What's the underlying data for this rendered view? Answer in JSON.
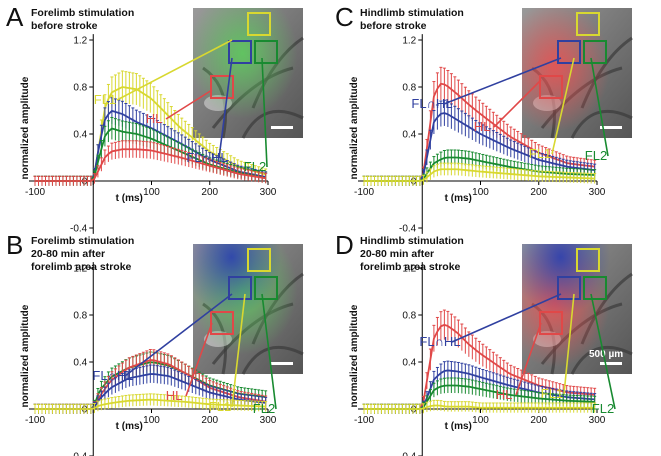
{
  "colors": {
    "FL1": "#d8d830",
    "HL": "#e04848",
    "FL_HL": "#3040a0",
    "FL2": "#188a30"
  },
  "axes": {
    "ylabel": "normalized amplitude",
    "xlabel": "t (ms)",
    "xticks": [
      "-100",
      "0",
      "100",
      "200",
      "300"
    ],
    "yticks": [
      "-0.4",
      "0",
      "0.4",
      "0.8",
      "1.2"
    ]
  },
  "scale_bar_label": "500 µm",
  "panels": [
    {
      "letter": "A",
      "title": [
        "Forelimb stimulation",
        "before stroke"
      ],
      "image_tint": "green",
      "labels": {
        "FL1": "FL1",
        "HL": "HL",
        "FL_HL": "FL∩HL",
        "FL2": "FL2"
      }
    },
    {
      "letter": "C",
      "title": [
        "Hindlimb stimulation",
        "before stroke"
      ],
      "image_tint": "red",
      "labels": {
        "FL1": "FL1",
        "HL": "HL",
        "FL_HL": "FL∩HL",
        "FL2": "FL2"
      }
    },
    {
      "letter": "B",
      "title": [
        "Forelimb stimulation",
        "20-80 min after",
        "forelimb area stroke"
      ],
      "image_tint": "green-blue",
      "labels": {
        "FL1": "FL1",
        "HL": "HL",
        "FL_HL": "FL∩HL",
        "FL2": "FL2"
      }
    },
    {
      "letter": "D",
      "title": [
        "Hindlimb stimulation",
        "20-80 min after",
        "forelimb area stroke"
      ],
      "image_tint": "red-blue",
      "labels": {
        "FL1": "FL1",
        "HL": "HL",
        "FL_HL": "FL∩HL",
        "FL2": "FL2"
      }
    }
  ],
  "chart_data": [
    {
      "panel": "A",
      "type": "line",
      "xlabel": "t (ms)",
      "ylabel": "normalized amplitude",
      "xlim": [
        -100,
        300
      ],
      "ylim": [
        -0.4,
        1.2
      ],
      "series": [
        {
          "name": "FL1",
          "x": [
            -100,
            -50,
            0,
            10,
            20,
            30,
            50,
            75,
            100,
            150,
            200,
            250,
            300
          ],
          "y": [
            0,
            0,
            0,
            0.3,
            0.62,
            0.75,
            0.8,
            0.78,
            0.7,
            0.45,
            0.25,
            0.12,
            0.05
          ]
        },
        {
          "name": "FL∩HL",
          "x": [
            -100,
            -50,
            0,
            10,
            20,
            30,
            50,
            75,
            100,
            150,
            200,
            250,
            300
          ],
          "y": [
            0,
            0,
            0,
            0.3,
            0.52,
            0.6,
            0.57,
            0.5,
            0.45,
            0.32,
            0.18,
            0.08,
            0.03
          ]
        },
        {
          "name": "FL2",
          "x": [
            -100,
            -50,
            0,
            10,
            20,
            30,
            50,
            75,
            100,
            150,
            200,
            250,
            300
          ],
          "y": [
            0,
            0,
            0,
            0.2,
            0.38,
            0.45,
            0.42,
            0.4,
            0.36,
            0.25,
            0.14,
            0.07,
            0.02
          ]
        },
        {
          "name": "HL",
          "x": [
            -100,
            -50,
            0,
            10,
            20,
            30,
            50,
            75,
            100,
            150,
            200,
            250,
            300
          ],
          "y": [
            0,
            0,
            0,
            0.1,
            0.2,
            0.25,
            0.27,
            0.27,
            0.26,
            0.2,
            0.13,
            0.06,
            0.02
          ]
        }
      ]
    },
    {
      "panel": "C",
      "type": "line",
      "xlabel": "t (ms)",
      "ylabel": "normalized amplitude",
      "xlim": [
        -100,
        300
      ],
      "ylim": [
        -0.4,
        1.2
      ],
      "series": [
        {
          "name": "HL",
          "x": [
            -100,
            -50,
            0,
            10,
            20,
            30,
            40,
            60,
            80,
            100,
            150,
            200,
            250,
            300
          ],
          "y": [
            0,
            0,
            0,
            0.35,
            0.72,
            0.83,
            0.82,
            0.74,
            0.65,
            0.57,
            0.38,
            0.24,
            0.15,
            0.12
          ]
        },
        {
          "name": "FL∩HL",
          "x": [
            -100,
            -50,
            0,
            10,
            20,
            30,
            40,
            60,
            80,
            100,
            150,
            200,
            250,
            300
          ],
          "y": [
            0,
            0,
            0,
            0.25,
            0.5,
            0.57,
            0.58,
            0.52,
            0.46,
            0.4,
            0.28,
            0.18,
            0.12,
            0.09
          ]
        },
        {
          "name": "FL2",
          "x": [
            -100,
            -50,
            0,
            10,
            20,
            30,
            40,
            60,
            80,
            100,
            150,
            200,
            250,
            300
          ],
          "y": [
            0,
            0,
            0,
            0.08,
            0.15,
            0.18,
            0.2,
            0.2,
            0.19,
            0.17,
            0.12,
            0.08,
            0.06,
            0.05
          ]
        },
        {
          "name": "FL1",
          "x": [
            -100,
            -50,
            0,
            10,
            20,
            30,
            40,
            60,
            80,
            100,
            150,
            200,
            250,
            300
          ],
          "y": [
            0,
            0,
            0,
            0.04,
            0.08,
            0.1,
            0.1,
            0.1,
            0.09,
            0.08,
            0.06,
            0.04,
            0.03,
            0.02
          ]
        }
      ]
    },
    {
      "panel": "B",
      "type": "line",
      "xlabel": "t (ms)",
      "ylabel": "normalized amplitude",
      "xlim": [
        -100,
        300
      ],
      "ylim": [
        -0.4,
        1.2
      ],
      "series": [
        {
          "name": "FL2",
          "x": [
            -100,
            -50,
            0,
            10,
            30,
            60,
            100,
            130,
            160,
            200,
            250,
            300
          ],
          "y": [
            0,
            0,
            0,
            0.15,
            0.27,
            0.35,
            0.4,
            0.37,
            0.3,
            0.2,
            0.13,
            0.1
          ]
        },
        {
          "name": "HL",
          "x": [
            -100,
            -50,
            0,
            10,
            30,
            60,
            100,
            130,
            160,
            200,
            250,
            300
          ],
          "y": [
            0,
            0,
            0,
            0.1,
            0.24,
            0.35,
            0.42,
            0.38,
            0.3,
            0.18,
            0.1,
            0.06
          ]
        },
        {
          "name": "FL∩HL",
          "x": [
            -100,
            -50,
            0,
            10,
            30,
            60,
            100,
            130,
            160,
            200,
            250,
            300
          ],
          "y": [
            0,
            0,
            0,
            0.08,
            0.18,
            0.26,
            0.3,
            0.28,
            0.22,
            0.14,
            0.08,
            0.05
          ]
        },
        {
          "name": "FL1",
          "x": [
            -100,
            -50,
            0,
            10,
            30,
            60,
            100,
            130,
            160,
            200,
            250,
            300
          ],
          "y": [
            0,
            0,
            0,
            0.03,
            0.05,
            0.07,
            0.08,
            0.07,
            0.06,
            0.04,
            0.03,
            0.02
          ]
        }
      ]
    },
    {
      "panel": "D",
      "type": "line",
      "xlabel": "t (ms)",
      "ylabel": "normalized amplitude",
      "xlim": [
        -100,
        300
      ],
      "ylim": [
        -0.4,
        1.2
      ],
      "series": [
        {
          "name": "HL",
          "x": [
            -100,
            -50,
            0,
            10,
            20,
            30,
            40,
            60,
            80,
            100,
            150,
            200,
            250,
            300
          ],
          "y": [
            0,
            0,
            0,
            0.3,
            0.6,
            0.7,
            0.72,
            0.65,
            0.55,
            0.47,
            0.3,
            0.2,
            0.14,
            0.12
          ]
        },
        {
          "name": "FL∩HL",
          "x": [
            -100,
            -50,
            0,
            10,
            20,
            30,
            40,
            60,
            80,
            100,
            150,
            200,
            250,
            300
          ],
          "y": [
            0,
            0,
            0,
            0.12,
            0.25,
            0.3,
            0.33,
            0.32,
            0.3,
            0.27,
            0.2,
            0.14,
            0.1,
            0.08
          ]
        },
        {
          "name": "FL2",
          "x": [
            -100,
            -50,
            0,
            10,
            20,
            30,
            40,
            60,
            80,
            100,
            150,
            200,
            250,
            300
          ],
          "y": [
            0,
            0,
            0,
            0.08,
            0.16,
            0.19,
            0.2,
            0.2,
            0.19,
            0.17,
            0.12,
            0.09,
            0.07,
            0.06
          ]
        },
        {
          "name": "FL1",
          "x": [
            -100,
            -50,
            0,
            10,
            20,
            30,
            40,
            60,
            80,
            100,
            150,
            200,
            250,
            300
          ],
          "y": [
            0,
            0,
            0,
            0.02,
            0.03,
            0.03,
            0.02,
            0.02,
            0.02,
            0.01,
            0.01,
            0.01,
            0.01,
            0.01
          ]
        }
      ]
    }
  ]
}
